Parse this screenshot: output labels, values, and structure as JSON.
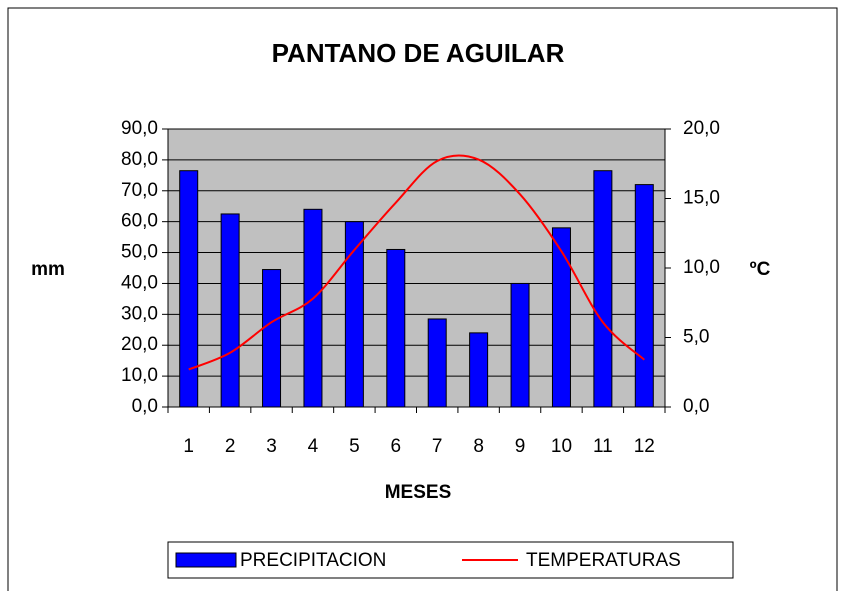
{
  "chart_data": {
    "type": "bar_line",
    "title": "PANTANO DE AGUILAR",
    "categories": [
      "1",
      "2",
      "3",
      "4",
      "5",
      "6",
      "7",
      "8",
      "9",
      "10",
      "11",
      "12"
    ],
    "xlabel": "MESES",
    "ylabel": "mm",
    "y2label": "ºC",
    "series": [
      {
        "name": "PRECIPITACION",
        "type": "bar",
        "color": "#0000ff",
        "values": [
          76.5,
          62.5,
          44.5,
          64,
          60,
          51,
          28.5,
          24,
          40,
          58,
          76.5,
          72
        ]
      },
      {
        "name": "TEMPERATURAS",
        "type": "line",
        "axis": "y2",
        "color": "#ff0000",
        "values": [
          2.7,
          3.9,
          6.1,
          7.8,
          11.3,
          14.7,
          17.7,
          17.8,
          15.3,
          11.2,
          6.1,
          3.4
        ]
      }
    ],
    "ylim": [
      0,
      90
    ],
    "yticks": [
      {
        "value": 0,
        "label": "0,0"
      },
      {
        "value": 10,
        "label": "10,0"
      },
      {
        "value": 20,
        "label": "20,0"
      },
      {
        "value": 30,
        "label": "30,0"
      },
      {
        "value": 40,
        "label": "40,0"
      },
      {
        "value": 50,
        "label": "50,0"
      },
      {
        "value": 60,
        "label": "60,0"
      },
      {
        "value": 70,
        "label": "70,0"
      },
      {
        "value": 80,
        "label": "80,0"
      },
      {
        "value": 90,
        "label": "90,0"
      }
    ],
    "y2lim": [
      0,
      20
    ],
    "y2ticks": [
      {
        "value": 0,
        "label": "0,0"
      },
      {
        "value": 5,
        "label": "5,0"
      },
      {
        "value": 10,
        "label": "10,0"
      },
      {
        "value": 15,
        "label": "15,0"
      },
      {
        "value": 20,
        "label": "20,0"
      }
    ],
    "grid": true,
    "legend": "bottom",
    "plot_background": "#c0c0c0"
  }
}
